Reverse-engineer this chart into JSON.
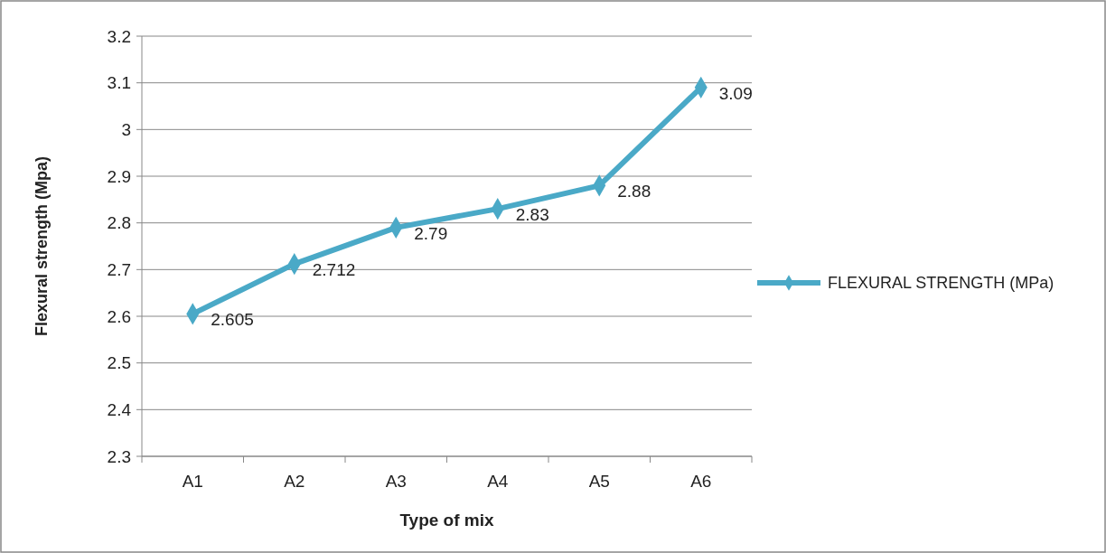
{
  "chart_data": {
    "type": "line",
    "xlabel": "Type of mix",
    "ylabel": "Flexural strength (Mpa)",
    "categories": [
      "A1",
      "A2",
      "A3",
      "A4",
      "A5",
      "A6"
    ],
    "series": [
      {
        "name": "FLEXURAL STRENGTH (MPa)",
        "color": "#4aa9c7",
        "values": [
          2.605,
          2.712,
          2.79,
          2.83,
          2.88,
          3.09
        ]
      }
    ],
    "ylim": [
      2.3,
      3.2
    ],
    "yticks": [
      2.3,
      2.4,
      2.5,
      2.6,
      2.7,
      2.8,
      2.9,
      3,
      3.1,
      3.2
    ],
    "grid": "y",
    "legend": "right",
    "marker": "diamond",
    "line_style": "solid",
    "data_labels": true
  }
}
